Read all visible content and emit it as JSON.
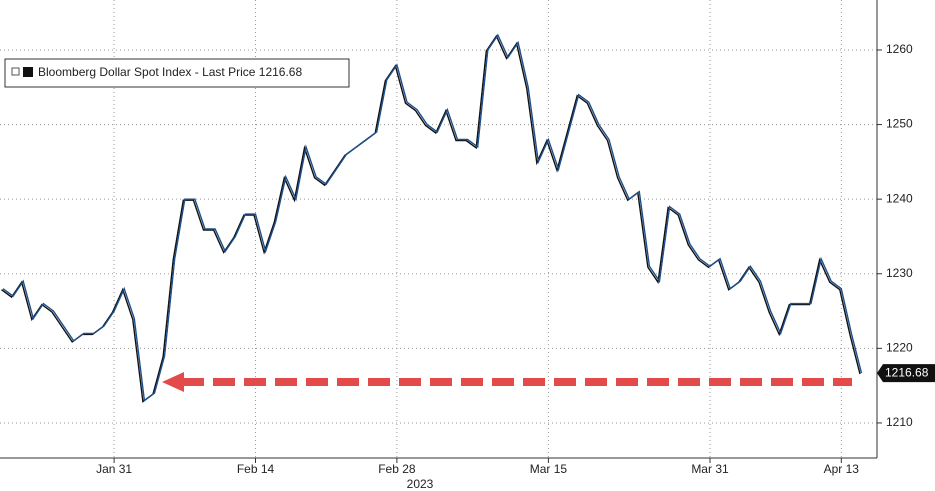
{
  "chart_data": {
    "type": "line",
    "categories": [
      "",
      null,
      null,
      null,
      null,
      null,
      null,
      null,
      null,
      null,
      null,
      "Jan 31",
      null,
      null,
      null,
      null,
      null,
      null,
      null,
      null,
      null,
      null,
      null,
      null,
      null,
      "Feb 14",
      null,
      null,
      null,
      null,
      null,
      null,
      null,
      null,
      null,
      null,
      null,
      null,
      null,
      "Feb 28",
      null,
      null,
      null,
      null,
      null,
      null,
      null,
      null,
      null,
      null,
      null,
      null,
      null,
      null,
      "Mar 15",
      null,
      null,
      null,
      null,
      null,
      null,
      null,
      null,
      null,
      null,
      null,
      null,
      null,
      null,
      null,
      "Mar 31",
      null,
      null,
      null,
      null,
      null,
      null,
      null,
      null,
      null,
      null,
      null,
      null,
      "Apr 13",
      null,
      null
    ],
    "x_label": "2023",
    "series": [
      {
        "name": "Bloomberg Dollar Spot Index - Last Price",
        "color": "#1d4f8c",
        "values": [
          1228,
          1227,
          1229,
          1224,
          1226,
          1225,
          1223,
          1221,
          1222,
          1222,
          1223,
          1225,
          1228,
          1224,
          1213,
          1214,
          1219,
          1232,
          1240,
          1240,
          1236,
          1236,
          1233,
          1235,
          1238,
          1238,
          1233,
          1237,
          1243,
          1240,
          1247,
          1243,
          1242,
          1244,
          1246,
          1247,
          1248,
          1249,
          1256,
          1258,
          1253,
          1252,
          1250,
          1249,
          1252,
          1248,
          1248,
          1247,
          1260,
          1262,
          1259,
          1261,
          1255,
          1245,
          1248,
          1244,
          1249,
          1254,
          1253,
          1250,
          1248,
          1243,
          1240,
          1241,
          1231,
          1229,
          1239,
          1238,
          1234,
          1232,
          1231,
          1232,
          1228,
          1229,
          1231,
          1229,
          1225,
          1222,
          1226,
          1226,
          1226,
          1232,
          1229,
          1228,
          1222,
          1216.68
        ]
      }
    ],
    "ylim": [
      1205.3,
      1266.7
    ],
    "yticks": [
      1210,
      1220,
      1230,
      1240,
      1250,
      1260
    ],
    "grid": true,
    "legend": "top-left"
  }
}
